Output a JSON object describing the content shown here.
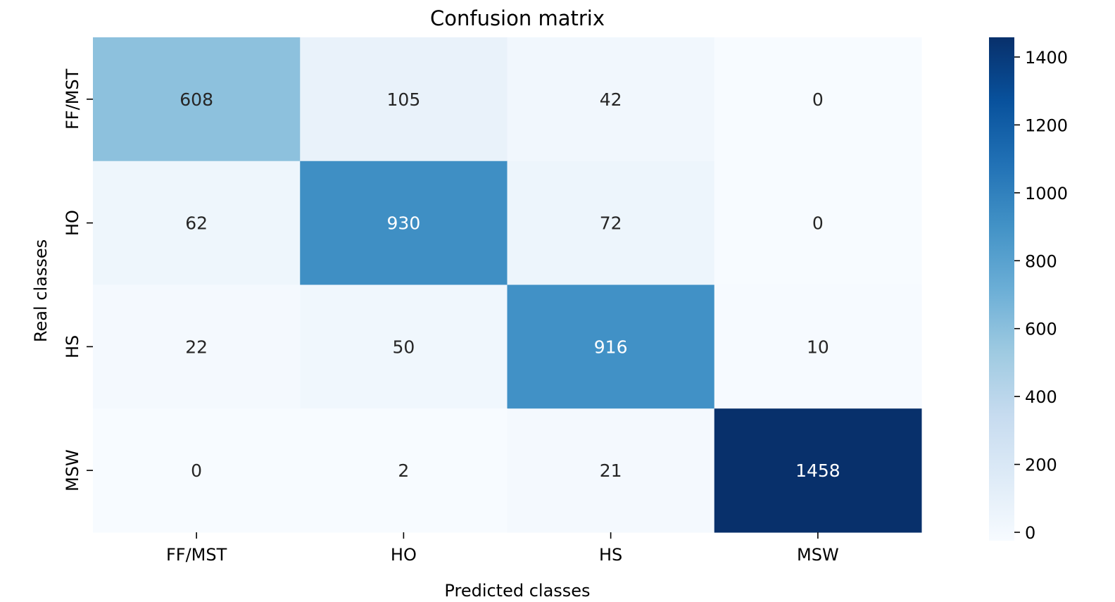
{
  "chart_data": {
    "type": "heatmap",
    "title": "Confusion matrix",
    "xlabel": "Predicted classes",
    "ylabel": "Real classes",
    "x_categories": [
      "FF/MST",
      "HO",
      "HS",
      "MSW"
    ],
    "y_categories": [
      "FF/MST",
      "HO",
      "HS",
      "MSW"
    ],
    "values": [
      [
        608,
        105,
        42,
        0
      ],
      [
        62,
        930,
        72,
        0
      ],
      [
        22,
        50,
        916,
        10
      ],
      [
        0,
        2,
        21,
        1458
      ]
    ],
    "colormap": "Blues",
    "color_range": [
      0,
      1458
    ],
    "colorbar_ticks": [
      0,
      200,
      400,
      600,
      800,
      1000,
      1200,
      1400
    ],
    "annotation_colors": {
      "dark": "#262626",
      "light": "#ffffff"
    },
    "grid": false
  }
}
